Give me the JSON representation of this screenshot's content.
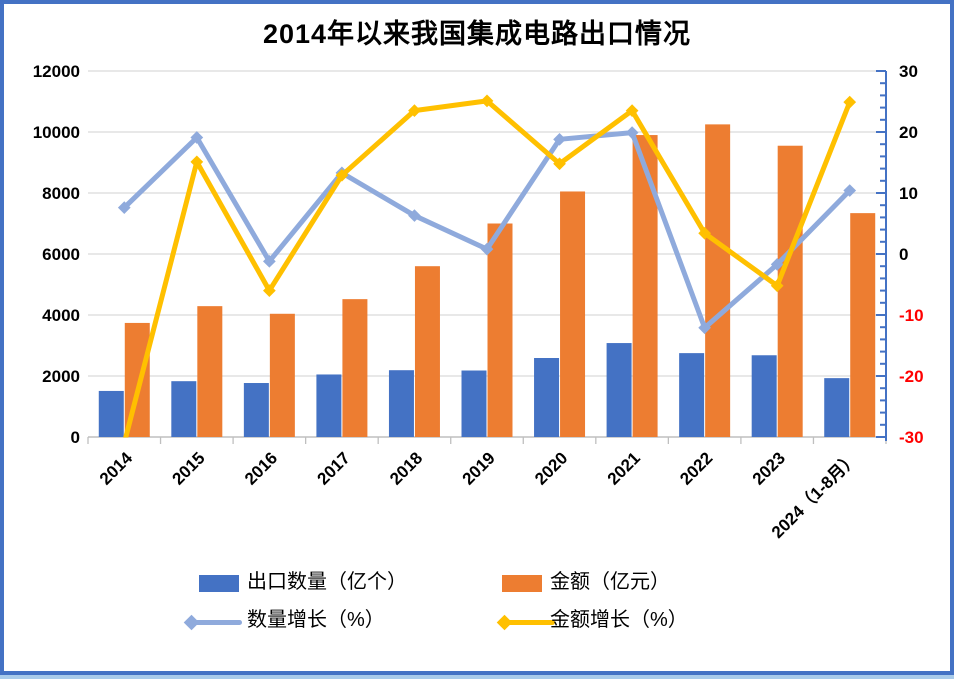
{
  "frame": {
    "border_color": "#4472C4",
    "bottom_strip_color": "#A9CBEA",
    "background": "#FFFFFF"
  },
  "chart_data": {
    "type": "combo-bar-line",
    "title": "2014年以来我国集成电路出口情况",
    "categories": [
      "2014",
      "2015",
      "2016",
      "2017",
      "2018",
      "2019",
      "2020",
      "2021",
      "2022",
      "2023",
      "2024（1-8月）"
    ],
    "series": [
      {
        "key": "export-quantity",
        "name": "出口数量（亿个）",
        "type": "bar",
        "axis": "left",
        "color": "#4472C4",
        "values": [
          1510,
          1830,
          1770,
          2050,
          2190,
          2180,
          2590,
          3080,
          2750,
          2680,
          1930
        ]
      },
      {
        "key": "export-value",
        "name": "金额（亿元）",
        "type": "bar",
        "axis": "left",
        "color": "#ED7D31",
        "values": [
          3740,
          4290,
          4040,
          4520,
          5600,
          7000,
          8050,
          9900,
          10250,
          9550,
          7340
        ]
      },
      {
        "key": "quantity-growth",
        "name": "数量增长（%）",
        "type": "line",
        "axis": "right",
        "color": "#8FAADC",
        "values": [
          7.6,
          19.1,
          -1.2,
          13.3,
          6.3,
          0.8,
          18.8,
          19.9,
          -12.1,
          -1.7,
          10.4
        ]
      },
      {
        "key": "value-growth",
        "name": "金额增长（%）",
        "type": "line",
        "axis": "right",
        "color": "#FFC000",
        "values": [
          -31,
          15.1,
          -6,
          12.9,
          23.5,
          25.1,
          14.8,
          23.5,
          3.4,
          -5.2,
          24.9
        ]
      }
    ],
    "left_axis": {
      "min": 0,
      "max": 12000,
      "step": 2000,
      "tick_labels": [
        "0",
        "2000",
        "4000",
        "6000",
        "8000",
        "10000",
        "12000"
      ]
    },
    "right_axis": {
      "min": -30,
      "max": 30,
      "step": 10,
      "minor_step": 2,
      "tick_labels": [
        "-30",
        "-20",
        "-10",
        "0",
        "10",
        "20",
        "30"
      ],
      "negative_label_color": "#FF0000",
      "axis_color": "#4472C4"
    },
    "grid_color": "#D9D9D9",
    "x_axis_color": "#BFBFBF",
    "legend_position": "bottom"
  }
}
